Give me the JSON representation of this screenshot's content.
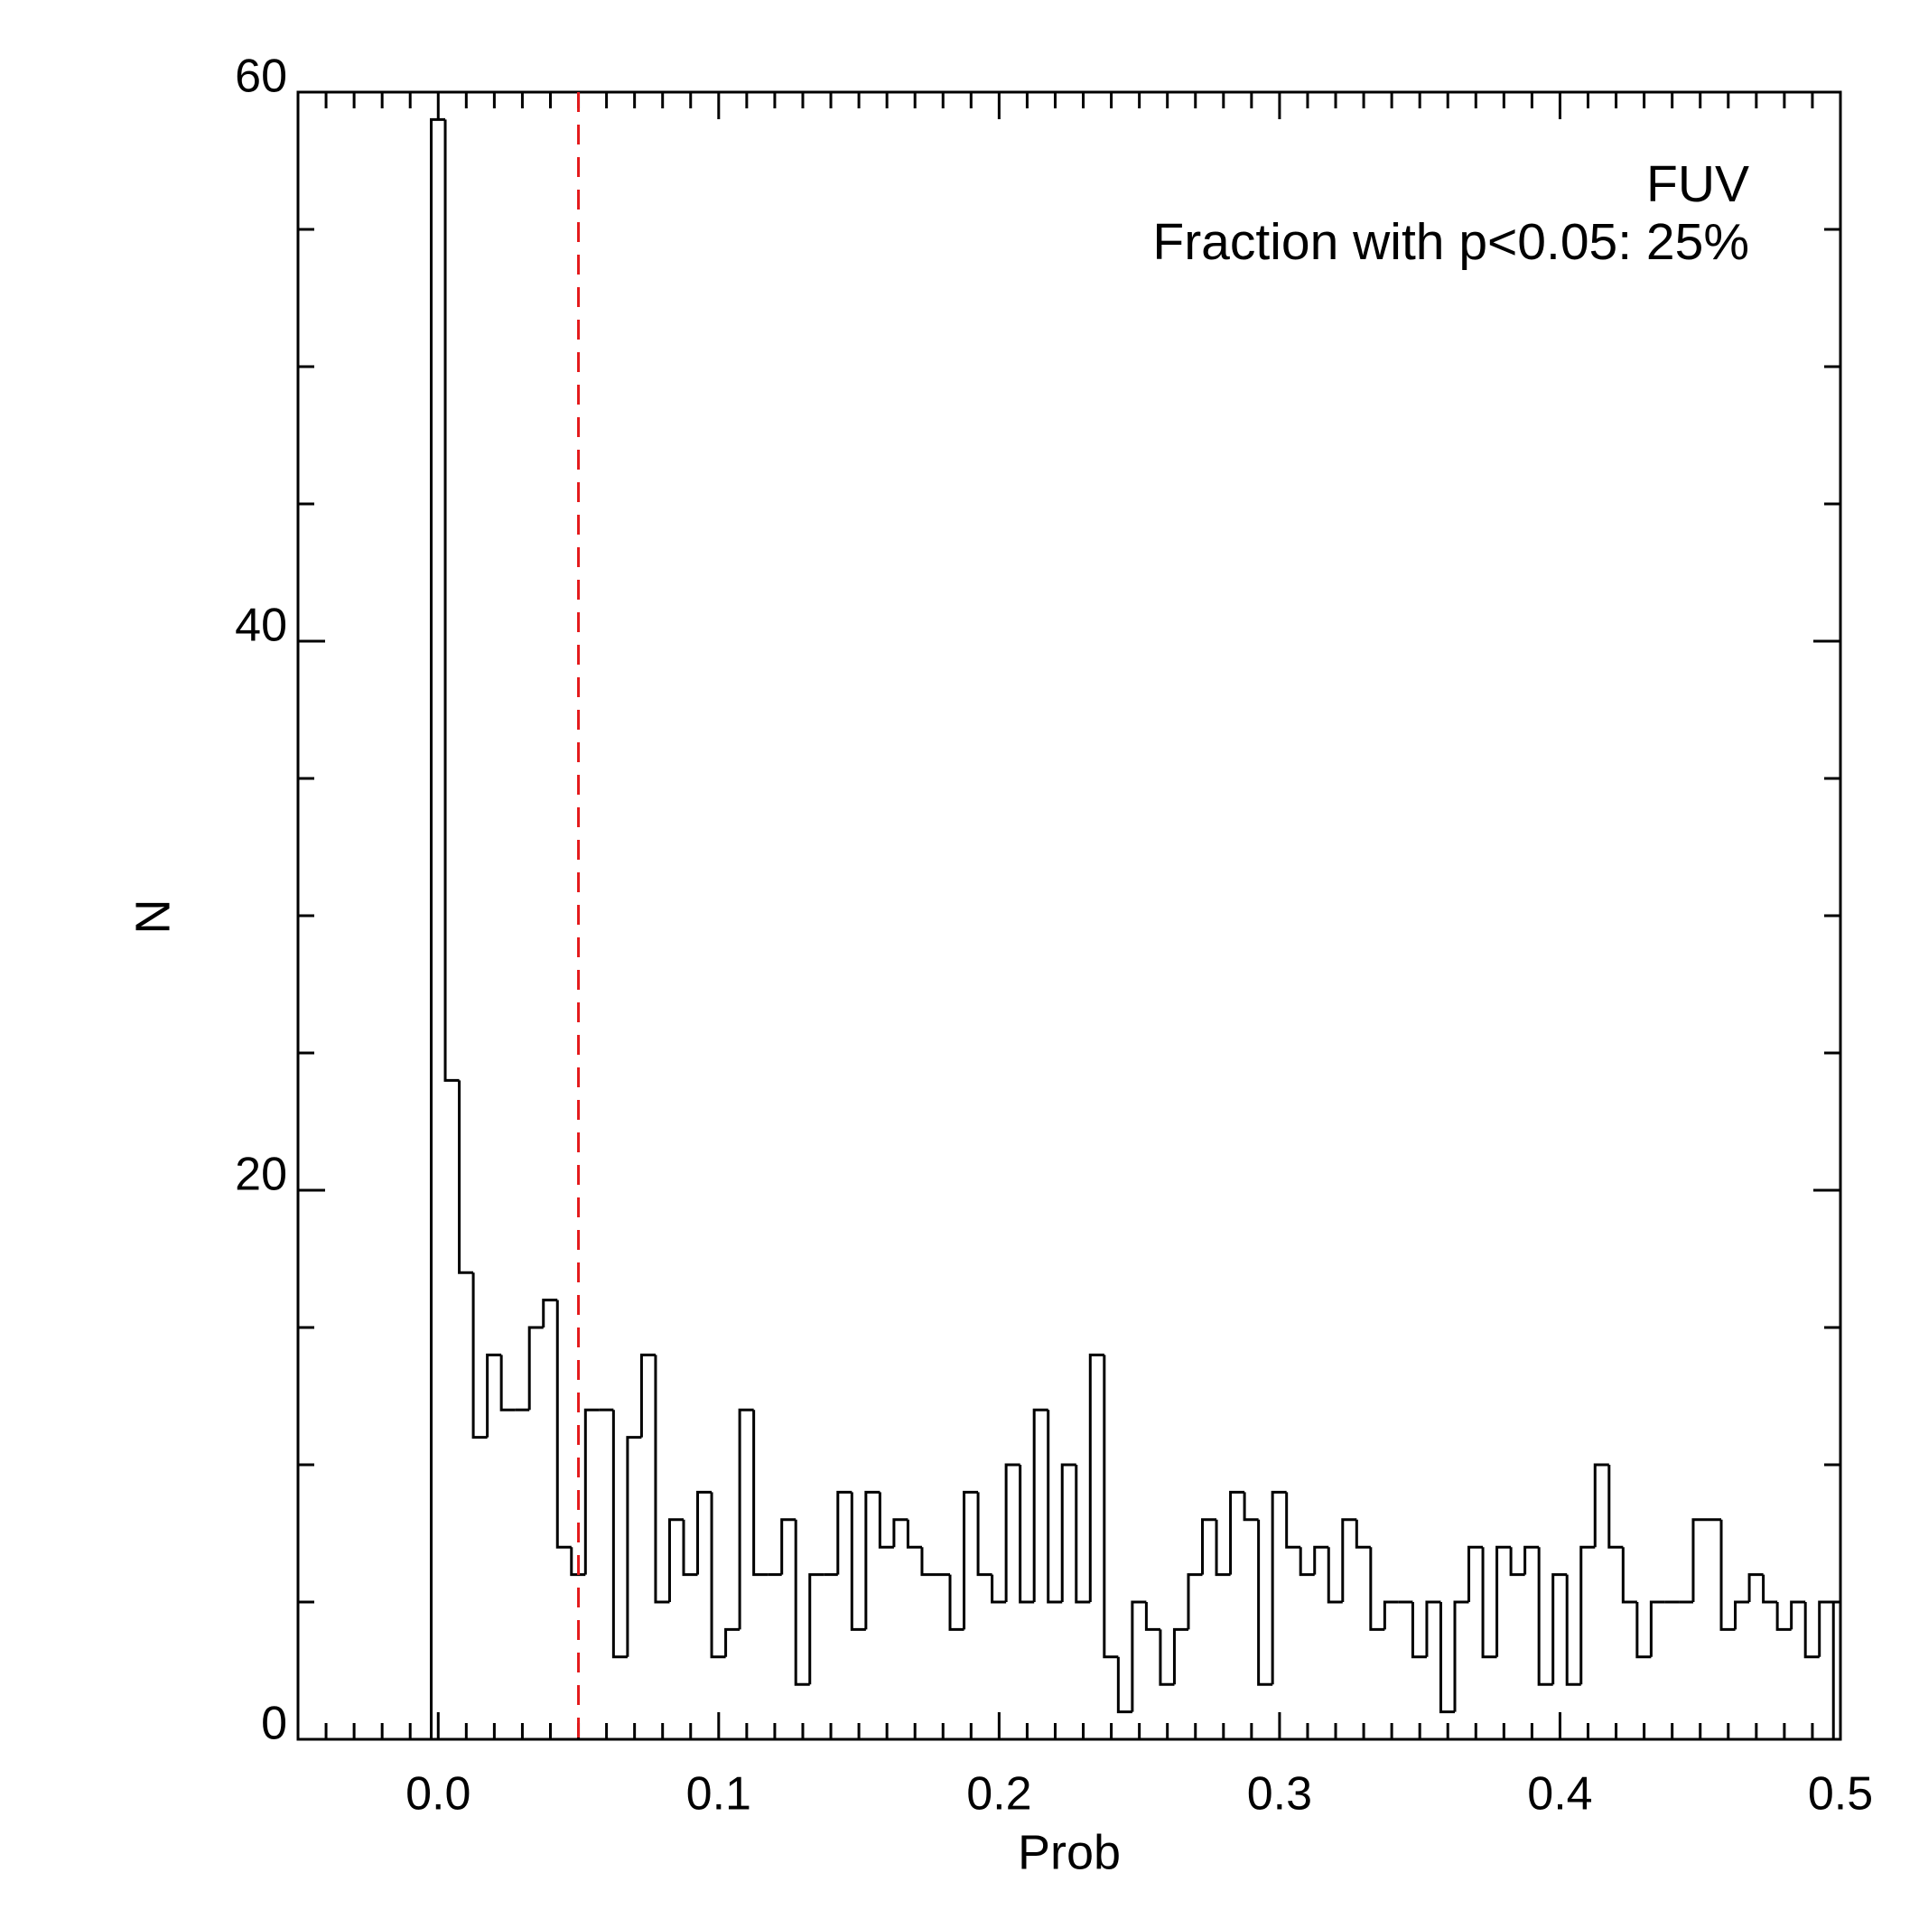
{
  "chart_data": {
    "type": "histogram",
    "annotations": [
      "FUV",
      "Fraction with p<0.05: 25%"
    ],
    "xlabel": "Prob",
    "ylabel": "N",
    "bins": [
      -0.0025,
      0.0025,
      0.0075,
      0.0125,
      0.0175,
      0.0225,
      0.0275,
      0.0325,
      0.0375,
      0.0425,
      0.0475,
      0.0525,
      0.0575,
      0.0625,
      0.0675,
      0.0725,
      0.0775,
      0.0825,
      0.0875,
      0.0925,
      0.0975,
      0.1025,
      0.1075,
      0.1125,
      0.1175,
      0.1225,
      0.1275,
      0.1325,
      0.1375,
      0.1425,
      0.1475,
      0.1525,
      0.1575,
      0.1625,
      0.1675,
      0.1725,
      0.1775,
      0.1825,
      0.1875,
      0.1925,
      0.1975,
      0.2025,
      0.2075,
      0.2125,
      0.2175,
      0.2225,
      0.2275,
      0.2325,
      0.2375,
      0.2425,
      0.2475,
      0.2525,
      0.2575,
      0.2625,
      0.2675,
      0.2725,
      0.2775,
      0.2825,
      0.2875,
      0.2925,
      0.2975,
      0.3025,
      0.3075,
      0.3125,
      0.3175,
      0.3225,
      0.3275,
      0.3325,
      0.3375,
      0.3425,
      0.3475,
      0.3525,
      0.3575,
      0.3625,
      0.3675,
      0.3725,
      0.3775,
      0.3825,
      0.3875,
      0.3925,
      0.3975,
      0.4025,
      0.4075,
      0.4125,
      0.4175,
      0.4225,
      0.4275,
      0.4325,
      0.4375,
      0.4425,
      0.4475,
      0.4525,
      0.4575,
      0.4625,
      0.4675,
      0.4725,
      0.4775,
      0.4825,
      0.4875,
      0.4925,
      0.4975
    ],
    "values": [
      59,
      24,
      17,
      11,
      14,
      12,
      12,
      15,
      16,
      7,
      6,
      12,
      12,
      3,
      11,
      14,
      5,
      8,
      6,
      9,
      3,
      4,
      12,
      6,
      6,
      8,
      2,
      6,
      6,
      9,
      4,
      9,
      7,
      8,
      7,
      6,
      6,
      4,
      9,
      6,
      5,
      10,
      5,
      12,
      5,
      10,
      5,
      14,
      3,
      1,
      5,
      4,
      2,
      4,
      6,
      8,
      6,
      9,
      8,
      2,
      9,
      7,
      6,
      7,
      5,
      8,
      7,
      4,
      5,
      5,
      3,
      5,
      1,
      5,
      7,
      3,
      7,
      6,
      7,
      2,
      6,
      2,
      7,
      10,
      7,
      5,
      3,
      5,
      5,
      5,
      8,
      8,
      4,
      5,
      6,
      5,
      4,
      5,
      3,
      5
    ],
    "color": "#000000",
    "vline": {
      "x": 0.05,
      "color": "#e41a1c"
    },
    "xlim": [
      -0.05,
      0.5
    ],
    "ylim": [
      0,
      60
    ],
    "xticks": [
      {
        "value": 0,
        "label": "0.0"
      },
      0.1,
      0.2,
      0.3,
      0.4,
      0.5
    ],
    "xminorticks": [
      -0.04,
      -0.03,
      -0.02,
      -0.01,
      0.01,
      0.02,
      0.03,
      0.04,
      0.05,
      0.06,
      0.07,
      0.08,
      0.09,
      0.11,
      0.12,
      0.13,
      0.14,
      0.15,
      0.16,
      0.17,
      0.18,
      0.19,
      0.21,
      0.22,
      0.23,
      0.24,
      0.25,
      0.26,
      0.27,
      0.28,
      0.29,
      0.31,
      0.32,
      0.33,
      0.34,
      0.35,
      0.36,
      0.37,
      0.38,
      0.39,
      0.41,
      0.42,
      0.43,
      0.44,
      0.45,
      0.46,
      0.47,
      0.48,
      0.49
    ],
    "yticks": [
      0,
      20,
      40,
      60
    ],
    "yminorticks": [
      5,
      10,
      15,
      25,
      30,
      35,
      45,
      50,
      55
    ]
  }
}
